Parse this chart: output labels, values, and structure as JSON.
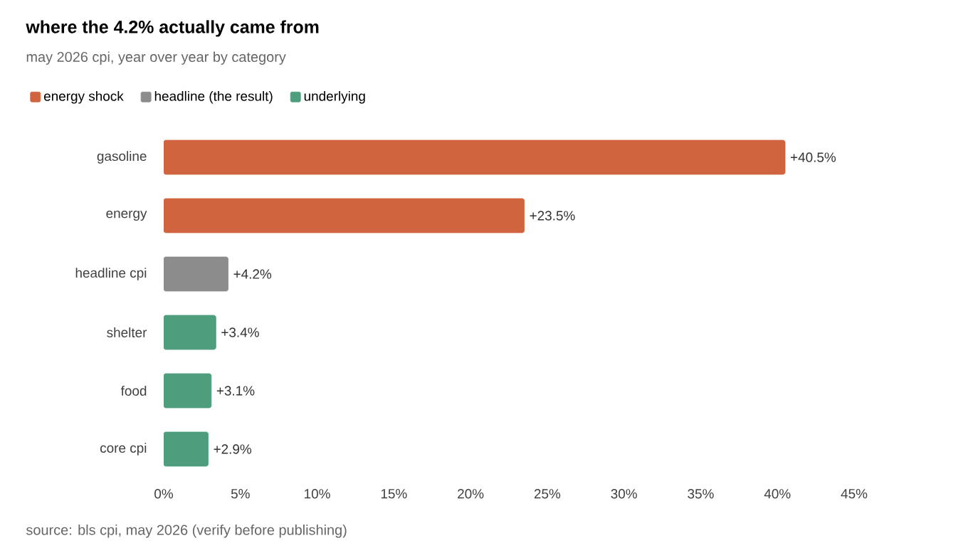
{
  "chart_data": {
    "type": "bar",
    "orientation": "horizontal",
    "title": "where the 4.2% actually came from",
    "subtitle": "may 2026 cpi, year over year by category",
    "categories": [
      "gasoline",
      "energy",
      "headline cpi",
      "shelter",
      "food",
      "core cpi"
    ],
    "series": [
      {
        "name": "energy shock",
        "color": "#d0643f",
        "values": [
          40.5,
          23.5,
          null,
          null,
          null,
          null
        ],
        "value_labels": [
          "+40.5%",
          "+23.5%",
          null,
          null,
          null,
          null
        ]
      },
      {
        "name": "headline (the result)",
        "color": "#8c8c8c",
        "values": [
          null,
          null,
          4.2,
          null,
          null,
          null
        ],
        "value_labels": [
          null,
          null,
          "+4.2%",
          null,
          null,
          null
        ]
      },
      {
        "name": "underlying",
        "color": "#4e9e7e",
        "values": [
          null,
          null,
          null,
          3.4,
          3.1,
          2.9
        ],
        "value_labels": [
          null,
          null,
          null,
          "+3.4%",
          "+3.1%",
          "+2.9%"
        ]
      }
    ],
    "xlim": [
      0,
      45
    ],
    "xticks": [
      {
        "value": 0,
        "label": "0%"
      },
      {
        "value": 5,
        "label": "5%"
      },
      {
        "value": 10,
        "label": "10%"
      },
      {
        "value": 15,
        "label": "15%"
      },
      {
        "value": 20,
        "label": "20%"
      },
      {
        "value": 25,
        "label": "25%"
      },
      {
        "value": 30,
        "label": "30%"
      },
      {
        "value": 35,
        "label": "35%"
      },
      {
        "value": 40,
        "label": "40%"
      },
      {
        "value": 45,
        "label": "45%"
      }
    ],
    "legend": "top left",
    "annotations": [
      "source: bls cpi, may 2026 (verify before publishing)"
    ]
  }
}
